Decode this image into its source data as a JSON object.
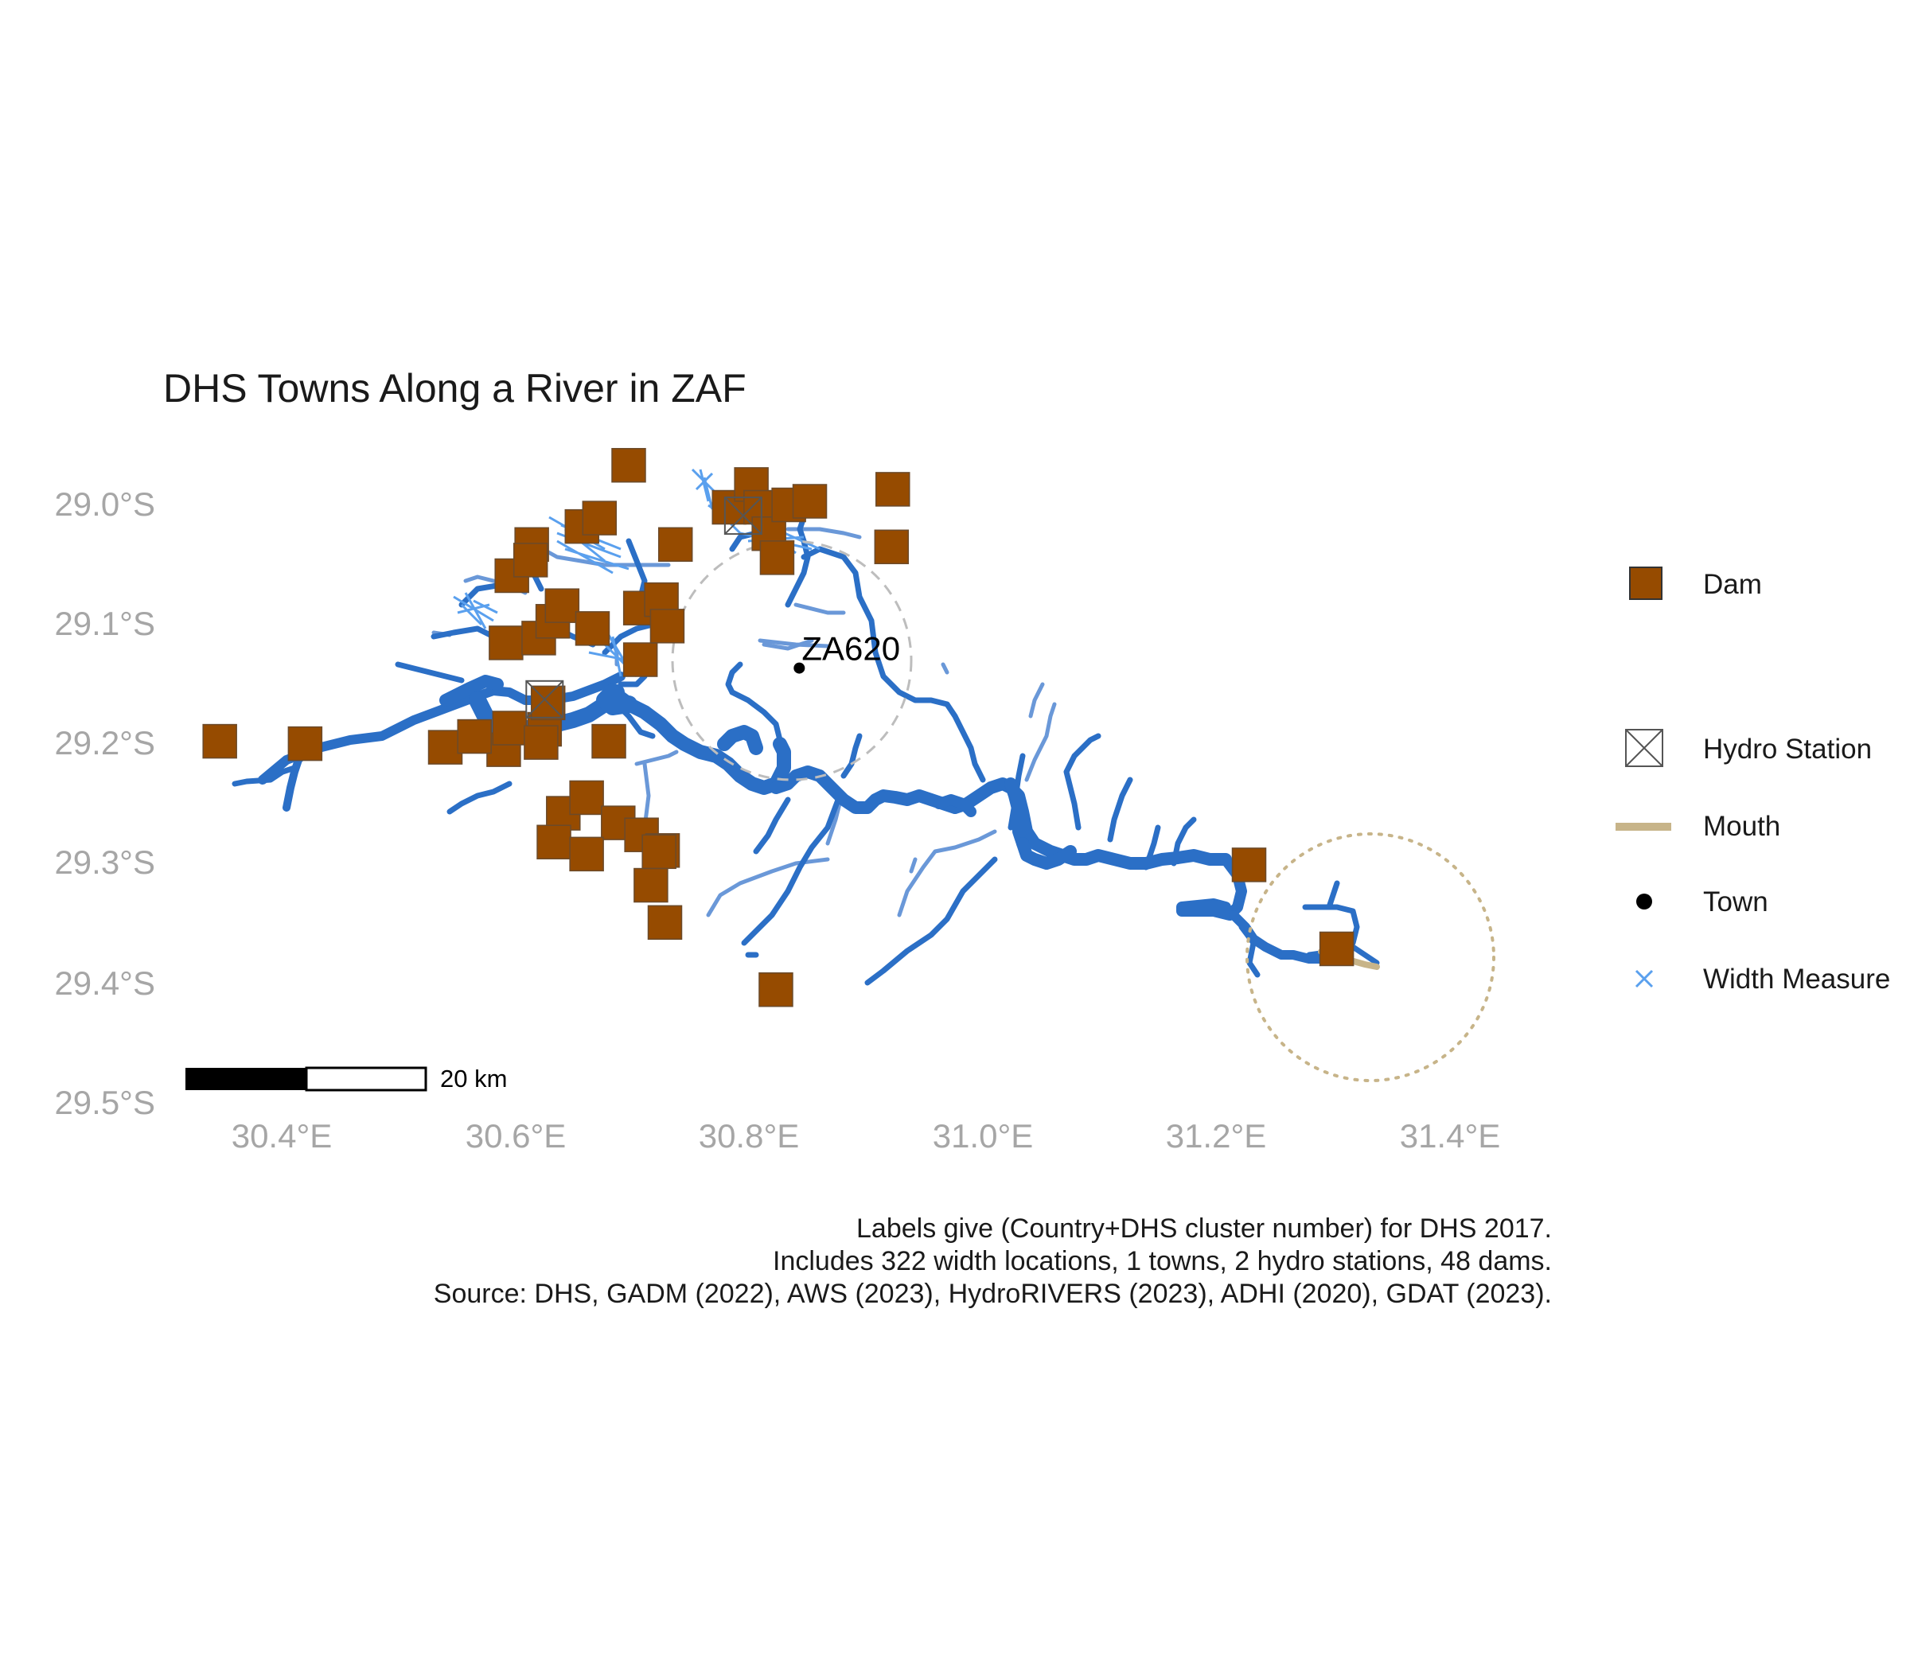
{
  "title": "DHS Towns Along a River in ZAF",
  "x_ticks": [
    "30.4°E",
    "30.6°E",
    "30.8°E",
    "31.0°E",
    "31.2°E",
    "31.4°E"
  ],
  "y_ticks": [
    "29.0°S",
    "29.1°S",
    "29.2°S",
    "29.3°S",
    "29.4°S",
    "29.5°S"
  ],
  "legend": {
    "dam": "Dam",
    "hydro": "Hydro Station",
    "mouth": "Mouth",
    "town": "Town",
    "width": "Width Measure"
  },
  "colors": {
    "dam": "#964B00",
    "river_major": "#2B6FC6",
    "river_minor": "#6A98D8",
    "width_measure": "#5AA0EE",
    "mouth": "#C7B489",
    "hydro": "#555555",
    "town": "#000000"
  },
  "town_label": "ZA620",
  "scale_label": "20 km",
  "caption": [
    "Labels give (Country+DHS cluster number) for DHS 2017.",
    "Includes 322 width locations, 1 towns, 2 hydro stations, 48 dams.",
    "Source: DHS, GADM (2022), AWS (2023), HydroRIVERS (2023), ADHI (2020), GDAT (2023)."
  ],
  "map_data": {
    "town": {
      "name": "ZA620",
      "lon": 30.843,
      "lat": -29.137
    },
    "hydro_stations": [
      {
        "lon": 30.625,
        "lat": -29.163
      },
      {
        "lon": 30.795,
        "lat": -29.01
      }
    ],
    "dams": [
      {
        "lon": 30.347,
        "lat": -29.198
      },
      {
        "lon": 30.42,
        "lat": -29.2
      },
      {
        "lon": 30.59,
        "lat": -29.205
      },
      {
        "lon": 30.54,
        "lat": -29.203
      },
      {
        "lon": 30.565,
        "lat": -29.194
      },
      {
        "lon": 30.595,
        "lat": -29.187
      },
      {
        "lon": 30.625,
        "lat": -29.188
      },
      {
        "lon": 30.622,
        "lat": -29.199
      },
      {
        "lon": 30.68,
        "lat": -29.198
      },
      {
        "lon": 30.628,
        "lat": -29.166
      },
      {
        "lon": 30.592,
        "lat": -29.116
      },
      {
        "lon": 30.62,
        "lat": -29.112
      },
      {
        "lon": 30.632,
        "lat": -29.098
      },
      {
        "lon": 30.64,
        "lat": -29.085
      },
      {
        "lon": 30.666,
        "lat": -29.104
      },
      {
        "lon": 30.707,
        "lat": -29.13
      },
      {
        "lon": 30.707,
        "lat": -29.087
      },
      {
        "lon": 30.725,
        "lat": -29.08
      },
      {
        "lon": 30.73,
        "lat": -29.102
      },
      {
        "lon": 30.597,
        "lat": -29.06
      },
      {
        "lon": 30.614,
        "lat": -29.034
      },
      {
        "lon": 30.657,
        "lat": -29.019
      },
      {
        "lon": 30.672,
        "lat": -29.012
      },
      {
        "lon": 30.697,
        "lat": -28.968
      },
      {
        "lon": 30.737,
        "lat": -29.034
      },
      {
        "lon": 30.783,
        "lat": -29.003
      },
      {
        "lon": 30.802,
        "lat": -28.984
      },
      {
        "lon": 30.81,
        "lat": -29.003
      },
      {
        "lon": 30.817,
        "lat": -29.025
      },
      {
        "lon": 30.834,
        "lat": -29.001
      },
      {
        "lon": 30.824,
        "lat": -29.045
      },
      {
        "lon": 30.852,
        "lat": -28.998
      },
      {
        "lon": 30.923,
        "lat": -28.988
      },
      {
        "lon": 30.922,
        "lat": -29.036
      },
      {
        "lon": 30.641,
        "lat": -29.258
      },
      {
        "lon": 30.661,
        "lat": -29.245
      },
      {
        "lon": 30.688,
        "lat": -29.266
      },
      {
        "lon": 30.708,
        "lat": -29.276
      },
      {
        "lon": 30.726,
        "lat": -29.289
      },
      {
        "lon": 30.633,
        "lat": -29.282
      },
      {
        "lon": 30.661,
        "lat": -29.292
      },
      {
        "lon": 30.716,
        "lat": -29.318
      },
      {
        "lon": 30.728,
        "lat": -29.349
      },
      {
        "lon": 30.823,
        "lat": -29.405
      },
      {
        "lon": 31.228,
        "lat": -29.301
      },
      {
        "lon": 31.303,
        "lat": -29.371
      },
      {
        "lon": 30.723,
        "lat": -29.29
      },
      {
        "lon": 30.613,
        "lat": -29.047
      }
    ]
  }
}
